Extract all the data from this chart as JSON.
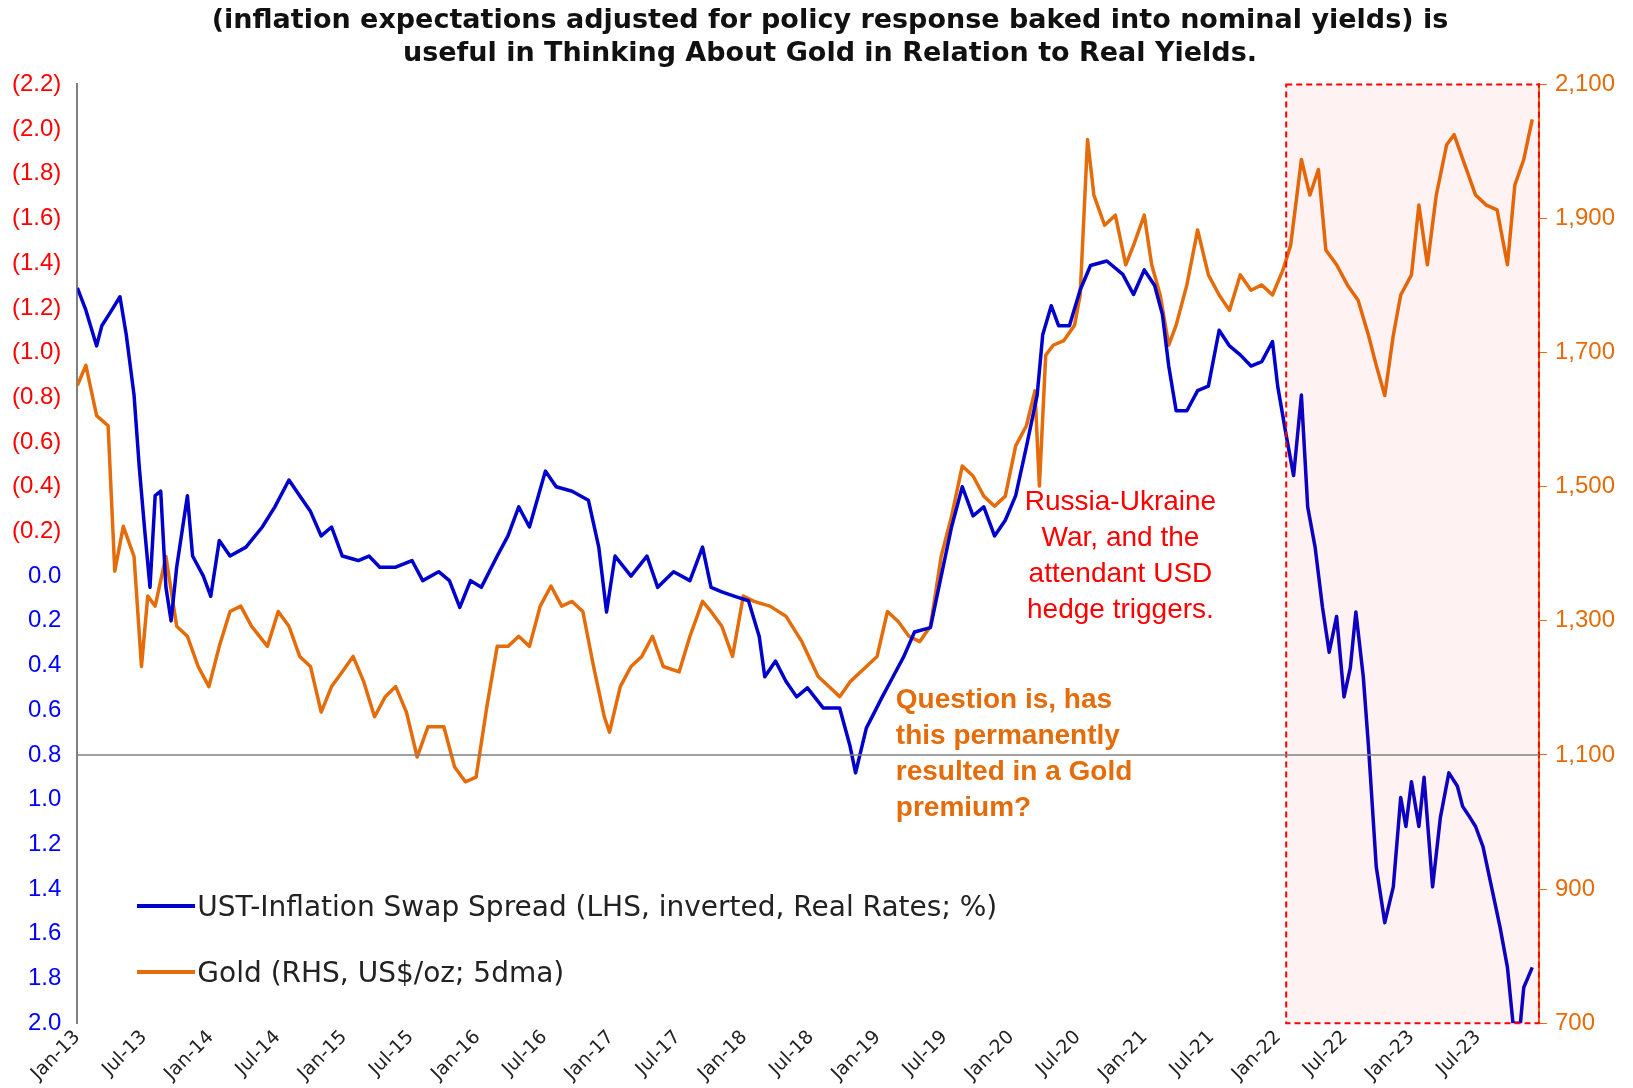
{
  "chart_data": {
    "type": "line",
    "title": "(inflation expectations adjusted for policy response baked into nominal yields) is useful in Thinking About Gold in Relation to Real Yields.",
    "xlim": [
      "2013-01-01",
      "2023-12-15"
    ],
    "xticks": [
      {
        "value": "2013-01",
        "label": "Jan-13"
      },
      {
        "value": "2013-07",
        "label": "Jul-13"
      },
      {
        "value": "2014-01",
        "label": "Jan-14"
      },
      {
        "value": "2014-07",
        "label": "Jul-14"
      },
      {
        "value": "2015-01",
        "label": "Jan-15"
      },
      {
        "value": "2015-07",
        "label": "Jul-15"
      },
      {
        "value": "2016-01",
        "label": "Jan-16"
      },
      {
        "value": "2016-07",
        "label": "Jul-16"
      },
      {
        "value": "2017-01",
        "label": "Jan-17"
      },
      {
        "value": "2017-07",
        "label": "Jul-17"
      },
      {
        "value": "2018-01",
        "label": "Jan-18"
      },
      {
        "value": "2018-07",
        "label": "Jul-18"
      },
      {
        "value": "2019-01",
        "label": "Jan-19"
      },
      {
        "value": "2019-07",
        "label": "Jul-19"
      },
      {
        "value": "2020-01",
        "label": "Jan-20"
      },
      {
        "value": "2020-07",
        "label": "Jul-20"
      },
      {
        "value": "2021-01",
        "label": "Jan-21"
      },
      {
        "value": "2021-07",
        "label": "Jul-21"
      },
      {
        "value": "2022-01",
        "label": "Jan-22"
      },
      {
        "value": "2022-07",
        "label": "Jul-22"
      },
      {
        "value": "2023-01",
        "label": "Jan-23"
      },
      {
        "value": "2023-07",
        "label": "Jul-23"
      }
    ],
    "ylim": [
      2.0,
      -2.2
    ],
    "yticks": [
      {
        "value": -2.2,
        "label": "(2.2)"
      },
      {
        "value": -2.0,
        "label": "(2.0)"
      },
      {
        "value": -1.8,
        "label": "(1.8)"
      },
      {
        "value": -1.6,
        "label": "(1.6)"
      },
      {
        "value": -1.4,
        "label": "(1.4)"
      },
      {
        "value": -1.2,
        "label": "(1.2)"
      },
      {
        "value": -1.0,
        "label": "(1.0)"
      },
      {
        "value": -0.8,
        "label": "(0.8)"
      },
      {
        "value": -0.6,
        "label": "(0.6)"
      },
      {
        "value": -0.4,
        "label": "(0.4)"
      },
      {
        "value": -0.2,
        "label": "(0.2)"
      },
      {
        "value": 0,
        "label": "0.0"
      },
      {
        "value": 0.2,
        "label": "0.2"
      },
      {
        "value": 0.4,
        "label": "0.4"
      },
      {
        "value": 0.6,
        "label": "0.6"
      },
      {
        "value": 0.8,
        "label": "0.8"
      },
      {
        "value": 1.0,
        "label": "1.0"
      },
      {
        "value": 1.2,
        "label": "1.2"
      },
      {
        "value": 1.4,
        "label": "1.4"
      },
      {
        "value": 1.6,
        "label": "1.6"
      },
      {
        "value": 1.8,
        "label": "1.8"
      },
      {
        "value": 2.0,
        "label": "2.0"
      }
    ],
    "y2lim": [
      700,
      2100
    ],
    "y2ticks": [
      700,
      {
        "value": 900,
        "label": "900"
      },
      {
        "value": 1100,
        "label": "1,100"
      },
      {
        "value": 1300,
        "label": "1,300"
      },
      {
        "value": 1500,
        "label": "1,500"
      },
      {
        "value": 1700,
        "label": "1,700"
      },
      {
        "value": 1900,
        "label": "1,900"
      },
      {
        "value": 2100,
        "label": "2,100"
      }
    ],
    "legend": "bottom left",
    "ref_lines": [
      {
        "axis": "y",
        "value": 0.8,
        "color": "#808080"
      }
    ],
    "bands": [
      {
        "axis": "x",
        "from": "2022-01-23",
        "to": "2023-12-15",
        "color": "#ff0000"
      }
    ],
    "annotations": [
      "Russia-Ukraine War, and the attendant USD hedge triggers.",
      "Question is, has this permanently resulted in a Gold premium?"
    ],
    "series": [
      {
        "name": "UST-Inflation Swap Spread (LHS, inverted, Real Rates; %)",
        "color": "#0000cc",
        "x": [
          "2013-01-01",
          "2013-01-24",
          "2013-02-23",
          "2013-03-07",
          "2013-03-30",
          "2013-04-26",
          "2013-05-13",
          "2013-06-04",
          "2013-06-18",
          "2013-07-02",
          "2013-07-17",
          "2013-08-01",
          "2013-08-16",
          "2013-08-30",
          "2013-09-14",
          "2013-09-29",
          "2013-10-28",
          "2013-11-12",
          "2013-12-11",
          "2014-01-01",
          "2014-01-24",
          "2014-02-23",
          "2014-04-06",
          "2014-05-20",
          "2014-06-24",
          "2014-08-02",
          "2014-09-01",
          "2014-09-30",
          "2014-10-29",
          "2014-11-27",
          "2014-12-26",
          "2015-02-09",
          "2015-03-08",
          "2015-04-07",
          "2015-05-20",
          "2015-07-04",
          "2015-08-03",
          "2015-09-16",
          "2015-10-15",
          "2015-11-13",
          "2015-12-12",
          "2016-01-11",
          "2016-02-24",
          "2016-03-23",
          "2016-04-22",
          "2016-05-21",
          "2016-07-04",
          "2016-08-03",
          "2016-09-16",
          "2016-10-30",
          "2016-11-28",
          "2016-12-19",
          "2017-01-12",
          "2017-02-25",
          "2017-04-08",
          "2017-05-07",
          "2017-06-20",
          "2017-08-04",
          "2017-09-08",
          "2017-10-01",
          "2017-10-30",
          "2017-12-05",
          "2018-01-12",
          "2018-02-11",
          "2018-02-26",
          "2018-03-25",
          "2018-04-23",
          "2018-05-22",
          "2018-06-21",
          "2018-08-04",
          "2018-09-18",
          "2018-10-16",
          "2018-11-01",
          "2018-11-30",
          "2019-01-13",
          "2019-02-12",
          "2019-03-11",
          "2019-04-10",
          "2019-05-23",
          "2019-06-22",
          "2019-07-20",
          "2019-08-19",
          "2019-09-18",
          "2019-10-17",
          "2019-11-16",
          "2019-12-15",
          "2020-01-13",
          "2020-02-12",
          "2020-03-11",
          "2020-03-26",
          "2020-04-19",
          "2020-05-09",
          "2020-06-08",
          "2020-07-07",
          "2020-08-05",
          "2020-09-19",
          "2020-11-02",
          "2020-12-01",
          "2020-12-30",
          "2021-01-28",
          "2021-02-19",
          "2021-03-06",
          "2021-03-26",
          "2021-04-25",
          "2021-05-24",
          "2021-06-23",
          "2021-07-22",
          "2021-08-20",
          "2021-09-19",
          "2021-10-18",
          "2021-11-17",
          "2021-12-16",
          "2021-12-30",
          "2022-01-23",
          "2022-02-13",
          "2022-03-04",
          "2022-03-21",
          "2022-04-11",
          "2022-05-01",
          "2022-05-19",
          "2022-06-09",
          "2022-06-29",
          "2022-07-16",
          "2022-08-01",
          "2022-08-21",
          "2022-09-05",
          "2022-09-26",
          "2022-10-19",
          "2022-11-12",
          "2022-12-02",
          "2022-12-16",
          "2023-01-01",
          "2023-01-21",
          "2023-02-05",
          "2023-02-28",
          "2023-03-19",
          "2023-04-12",
          "2023-05-05",
          "2023-05-19",
          "2023-06-09",
          "2023-06-24",
          "2023-07-14",
          "2023-08-07",
          "2023-08-30",
          "2023-09-20",
          "2023-10-05",
          "2023-10-25",
          "2023-11-04",
          "2023-11-27"
        ],
        "values": [
          -1.29,
          -1.19,
          -1.03,
          -1.12,
          -1.18,
          -1.25,
          -1.08,
          -0.81,
          -0.49,
          -0.22,
          0.05,
          -0.36,
          -0.38,
          0.05,
          0.2,
          -0.04,
          -0.36,
          -0.09,
          0.0,
          0.09,
          -0.16,
          -0.09,
          -0.13,
          -0.22,
          -0.31,
          -0.43,
          -0.36,
          -0.29,
          -0.18,
          -0.22,
          -0.09,
          -0.07,
          -0.09,
          -0.04,
          -0.04,
          -0.07,
          0.02,
          -0.02,
          0.02,
          0.14,
          0.02,
          0.05,
          -0.09,
          -0.18,
          -0.31,
          -0.22,
          -0.47,
          -0.4,
          -0.38,
          -0.34,
          -0.13,
          0.16,
          -0.09,
          0.0,
          -0.09,
          0.05,
          -0.02,
          0.02,
          -0.13,
          0.05,
          0.07,
          0.09,
          0.11,
          0.27,
          0.45,
          0.38,
          0.47,
          0.54,
          0.5,
          0.59,
          0.59,
          0.76,
          0.88,
          0.68,
          0.54,
          0.45,
          0.36,
          0.25,
          0.23,
          0.0,
          -0.22,
          -0.4,
          -0.27,
          -0.31,
          -0.18,
          -0.25,
          -0.36,
          -0.58,
          -0.81,
          -1.08,
          -1.21,
          -1.12,
          -1.12,
          -1.28,
          -1.39,
          -1.41,
          -1.35,
          -1.26,
          -1.37,
          -1.3,
          -1.17,
          -0.94,
          -0.74,
          -0.74,
          -0.83,
          -0.85,
          -1.1,
          -1.03,
          -0.99,
          -0.94,
          -0.96,
          -1.05,
          -0.85,
          -0.63,
          -0.45,
          -0.81,
          -0.31,
          -0.13,
          0.14,
          0.34,
          0.18,
          0.54,
          0.41,
          0.16,
          0.45,
          0.76,
          1.3,
          1.55,
          1.39,
          0.99,
          1.12,
          0.92,
          1.12,
          0.9,
          1.39,
          1.08,
          0.88,
          0.94,
          1.03,
          1.08,
          1.12,
          1.21,
          1.39,
          1.57,
          1.75,
          2.0,
          2.0,
          1.84,
          1.75
        ]
      },
      {
        "name": "Gold (RHS, US$/oz; 5dma)",
        "color": "#e46c0a",
        "axis": "y2",
        "x": [
          "2013-01-01",
          "2013-01-24",
          "2013-02-23",
          "2013-03-24",
          "2013-04-12",
          "2013-05-05",
          "2013-06-04",
          "2013-06-24",
          "2013-07-11",
          "2013-08-01",
          "2013-08-30",
          "2013-09-29",
          "2013-10-28",
          "2013-11-27",
          "2013-12-26",
          "2014-01-24",
          "2014-02-23",
          "2014-03-22",
          "2014-04-21",
          "2014-06-04",
          "2014-07-03",
          "2014-08-02",
          "2014-09-01",
          "2014-09-30",
          "2014-10-29",
          "2014-11-27",
          "2014-12-26",
          "2015-01-25",
          "2015-02-24",
          "2015-03-23",
          "2015-04-22",
          "2015-05-20",
          "2015-06-19",
          "2015-07-18",
          "2015-08-17",
          "2015-09-30",
          "2015-10-29",
          "2015-11-28",
          "2015-12-27",
          "2016-01-26",
          "2016-02-24",
          "2016-03-23",
          "2016-04-22",
          "2016-05-21",
          "2016-06-20",
          "2016-07-19",
          "2016-08-18",
          "2016-09-16",
          "2016-10-15",
          "2016-11-14",
          "2016-12-13",
          "2016-12-27",
          "2017-01-26",
          "2017-02-25",
          "2017-03-24",
          "2017-04-23",
          "2017-05-22",
          "2017-07-05",
          "2017-08-04",
          "2017-09-08",
          "2017-10-01",
          "2017-10-30",
          "2017-11-29",
          "2017-12-28",
          "2018-01-27",
          "2018-03-10",
          "2018-04-23",
          "2018-06-06",
          "2018-07-20",
          "2018-08-19",
          "2018-09-18",
          "2018-10-16",
          "2018-11-15",
          "2018-12-29",
          "2019-01-27",
          "2019-02-26",
          "2019-03-25",
          "2019-04-24",
          "2019-05-23",
          "2019-06-22",
          "2019-07-20",
          "2019-08-19",
          "2019-09-18",
          "2019-10-17",
          "2019-11-16",
          "2019-12-15",
          "2020-01-13",
          "2020-02-12",
          "2020-03-05",
          "2020-03-17",
          "2020-04-04",
          "2020-04-24",
          "2020-05-23",
          "2020-06-22",
          "2020-07-07",
          "2020-07-27",
          "2020-08-14",
          "2020-09-13",
          "2020-10-12",
          "2020-11-10",
          "2020-12-01",
          "2020-12-30",
          "2021-01-20",
          "2021-02-13",
          "2021-03-06",
          "2021-03-26",
          "2021-04-25",
          "2021-05-24",
          "2021-06-23",
          "2021-07-22",
          "2021-08-20",
          "2021-09-19",
          "2021-10-18",
          "2021-11-17",
          "2021-12-16",
          "2022-01-14",
          "2022-02-05",
          "2022-03-04",
          "2022-03-27",
          "2022-04-20",
          "2022-05-10",
          "2022-06-09",
          "2022-07-08",
          "2022-08-07",
          "2022-09-05",
          "2022-09-26",
          "2022-10-19",
          "2022-11-12",
          "2022-12-02",
          "2023-01-01",
          "2023-01-21",
          "2023-02-14",
          "2023-03-08",
          "2023-04-06",
          "2023-04-26",
          "2023-05-25",
          "2023-06-24",
          "2023-07-23",
          "2023-08-22",
          "2023-09-20",
          "2023-10-10",
          "2023-11-04",
          "2023-11-27"
        ],
        "values": [
          1651,
          1681,
          1606,
          1591,
          1374,
          1441,
          1396,
          1232,
          1337,
          1322,
          1396,
          1292,
          1277,
          1232,
          1202,
          1262,
          1314,
          1322,
          1292,
          1262,
          1314,
          1292,
          1247,
          1232,
          1164,
          1202,
          1224,
          1247,
          1209,
          1157,
          1187,
          1202,
          1164,
          1097,
          1142,
          1142,
          1082,
          1060,
          1067,
          1172,
          1262,
          1262,
          1277,
          1262,
          1322,
          1352,
          1322,
          1329,
          1314,
          1232,
          1157,
          1134,
          1202,
          1232,
          1247,
          1277,
          1232,
          1224,
          1277,
          1329,
          1314,
          1292,
          1247,
          1337,
          1329,
          1322,
          1307,
          1269,
          1217,
          1202,
          1187,
          1209,
          1224,
          1247,
          1314,
          1299,
          1277,
          1269,
          1292,
          1396,
          1456,
          1531,
          1516,
          1486,
          1471,
          1486,
          1561,
          1591,
          1643,
          1501,
          1696,
          1711,
          1718,
          1741,
          1786,
          2018,
          1935,
          1890,
          1905,
          1831,
          1860,
          1905,
          1831,
          1786,
          1711,
          1741,
          1801,
          1883,
          1816,
          1786,
          1763,
          1816,
          1793,
          1801,
          1786,
          1823,
          1860,
          1988,
          1935,
          1973,
          1853,
          1831,
          1801,
          1778,
          1726,
          1681,
          1636,
          1726,
          1786,
          1816,
          1920,
          1831,
          1935,
          2010,
          2025,
          1980,
          1935,
          1920,
          1913,
          1831,
          1950,
          1988,
          2048
        ]
      }
    ]
  }
}
